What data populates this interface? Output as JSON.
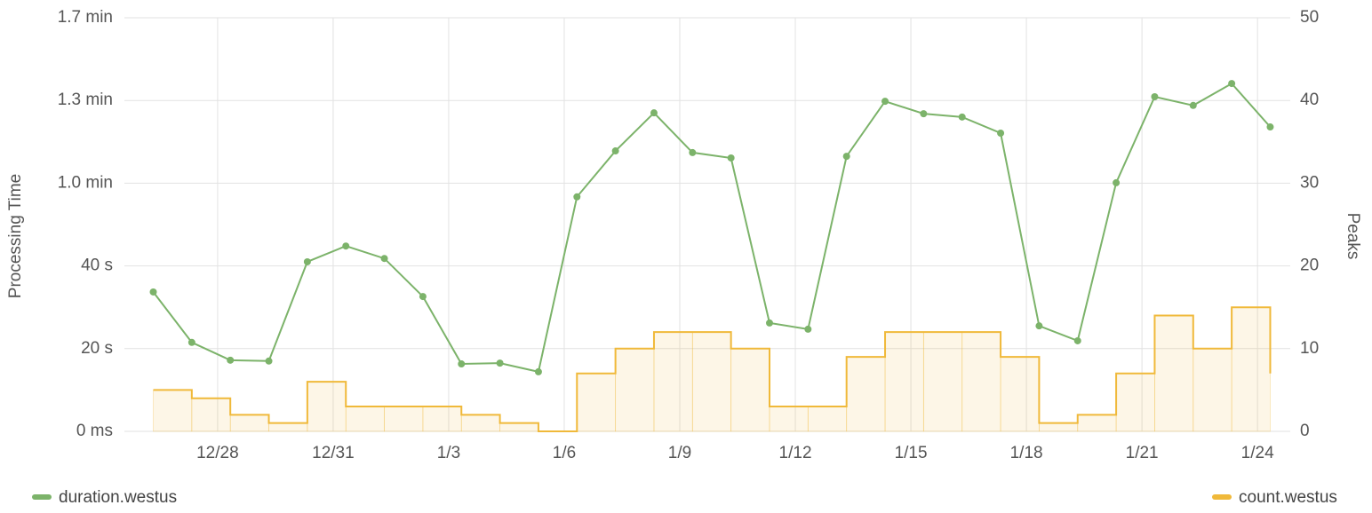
{
  "chart_data": {
    "type": "line-step",
    "y_label": "Processing Time",
    "y2_label": "Peaks",
    "x": [
      0.33,
      1.33,
      2.33,
      3.33,
      4.33,
      5.33,
      6.33,
      7.33,
      8.33,
      9.33,
      10.33,
      11.33,
      12.33,
      13.33,
      14.33,
      15.33,
      16.33,
      17.33,
      18.33,
      19.33,
      20.33,
      21.33,
      22.33,
      23.33,
      24.33,
      25.33,
      26.33,
      27.33,
      28.33,
      29.33
    ],
    "xlim": [
      -0.42,
      29.85
    ],
    "xticks": [
      {
        "value": 2,
        "label": "12/28"
      },
      {
        "value": 5,
        "label": "12/31"
      },
      {
        "value": 8,
        "label": "1/3"
      },
      {
        "value": 11,
        "label": "1/6"
      },
      {
        "value": 14,
        "label": "1/9"
      },
      {
        "value": 17,
        "label": "1/12"
      },
      {
        "value": 20,
        "label": "1/15"
      },
      {
        "value": 23,
        "label": "1/18"
      },
      {
        "value": 26,
        "label": "1/21"
      },
      {
        "value": 29,
        "label": "1/24"
      }
    ],
    "ylim": [
      0,
      100
    ],
    "yticks": [
      {
        "value": 0,
        "label": "0 ms"
      },
      {
        "value": 20,
        "label": "20 s"
      },
      {
        "value": 40,
        "label": "40 s"
      },
      {
        "value": 60,
        "label": "1.0 min"
      },
      {
        "value": 80,
        "label": "1.3 min"
      },
      {
        "value": 100,
        "label": "1.7 min"
      }
    ],
    "y2lim": [
      0,
      50
    ],
    "y2ticks": [
      0,
      10,
      20,
      30,
      40,
      50
    ],
    "grid": true,
    "series": [
      {
        "name": "duration.westus",
        "color": "#7cb36a",
        "kind": "line",
        "values": [
          33.7,
          21.5,
          17.2,
          17.0,
          41.0,
          44.8,
          41.8,
          32.6,
          16.3,
          16.5,
          14.4,
          56.7,
          67.8,
          77.0,
          67.4,
          66.1,
          26.2,
          24.7,
          66.5,
          79.8,
          76.8,
          76.0,
          72.1,
          25.5,
          21.9,
          60.1,
          80.9,
          78.8,
          84.1,
          73.6
        ]
      },
      {
        "name": "count.westus",
        "color": "#f0b93a",
        "kind": "step",
        "axis": "y2",
        "values": [
          5,
          4,
          2,
          1,
          6,
          3,
          3,
          3,
          2,
          1,
          0,
          7,
          10,
          12,
          12,
          10,
          3,
          3,
          9,
          12,
          12,
          12,
          9,
          1,
          2,
          7,
          14,
          10,
          15,
          7
        ]
      }
    ]
  }
}
